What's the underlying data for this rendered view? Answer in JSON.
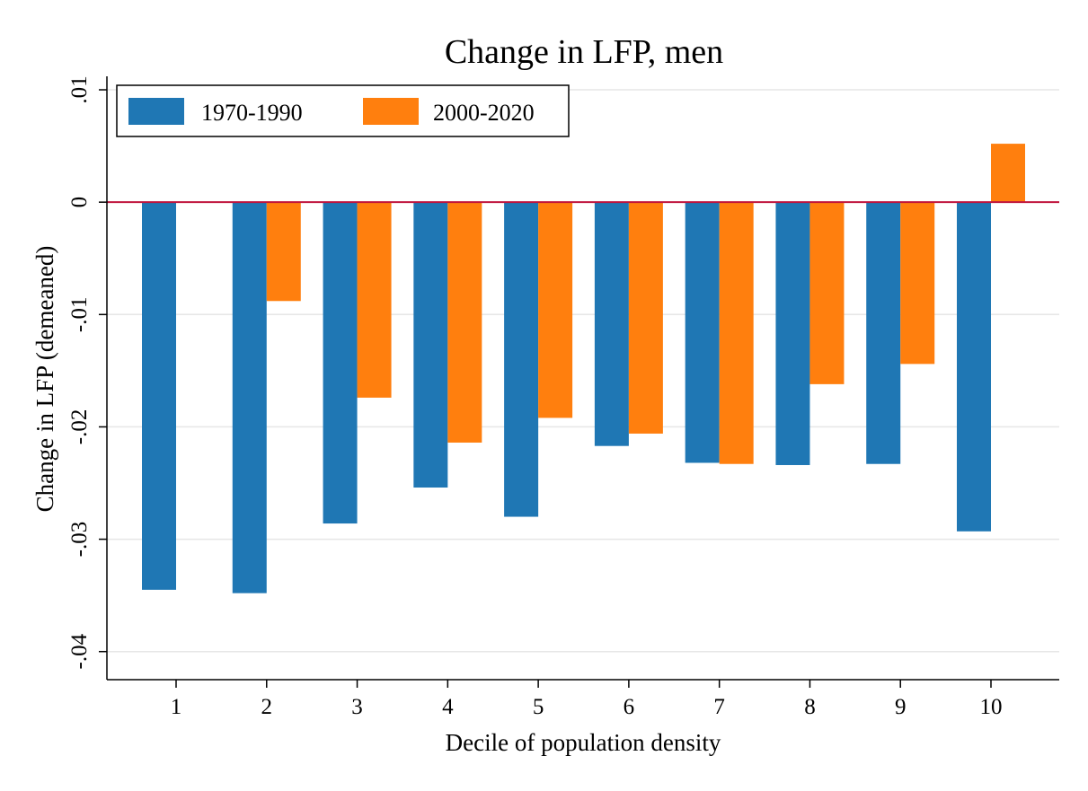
{
  "chart_data": {
    "type": "bar",
    "title": "Change in LFP, men",
    "xlabel": "Decile of population density",
    "ylabel": "Change in LFP (demeaned)",
    "categories": [
      "1",
      "2",
      "3",
      "4",
      "5",
      "6",
      "7",
      "8",
      "9",
      "10"
    ],
    "series": [
      {
        "name": "1970-1990",
        "color": "#1f77b4",
        "values": [
          -0.0345,
          -0.0348,
          -0.0286,
          -0.0254,
          -0.028,
          -0.0217,
          -0.0232,
          -0.0234,
          -0.0233,
          -0.0293
        ]
      },
      {
        "name": "2000-2020",
        "color": "#ff7f0e",
        "values": [
          0.0,
          -0.0088,
          -0.0174,
          -0.0214,
          -0.0192,
          -0.0206,
          -0.0233,
          -0.0162,
          -0.0144,
          0.0052
        ]
      }
    ],
    "ylim": [
      -0.0425,
      0.0112
    ],
    "yticks": [
      {
        "value": 0.01,
        "label": ".01"
      },
      {
        "value": 0.0,
        "label": "0"
      },
      {
        "value": -0.01,
        "label": "-.01"
      },
      {
        "value": -0.02,
        "label": "-.02"
      },
      {
        "value": -0.03,
        "label": "-.03"
      },
      {
        "value": -0.04,
        "label": "-.04"
      }
    ],
    "grid": true,
    "reference_line": {
      "value": 0,
      "color": "#c0143c"
    },
    "legend_position": "top-left",
    "axis_color": "#000000",
    "grid_color": "#e6e6e6"
  }
}
